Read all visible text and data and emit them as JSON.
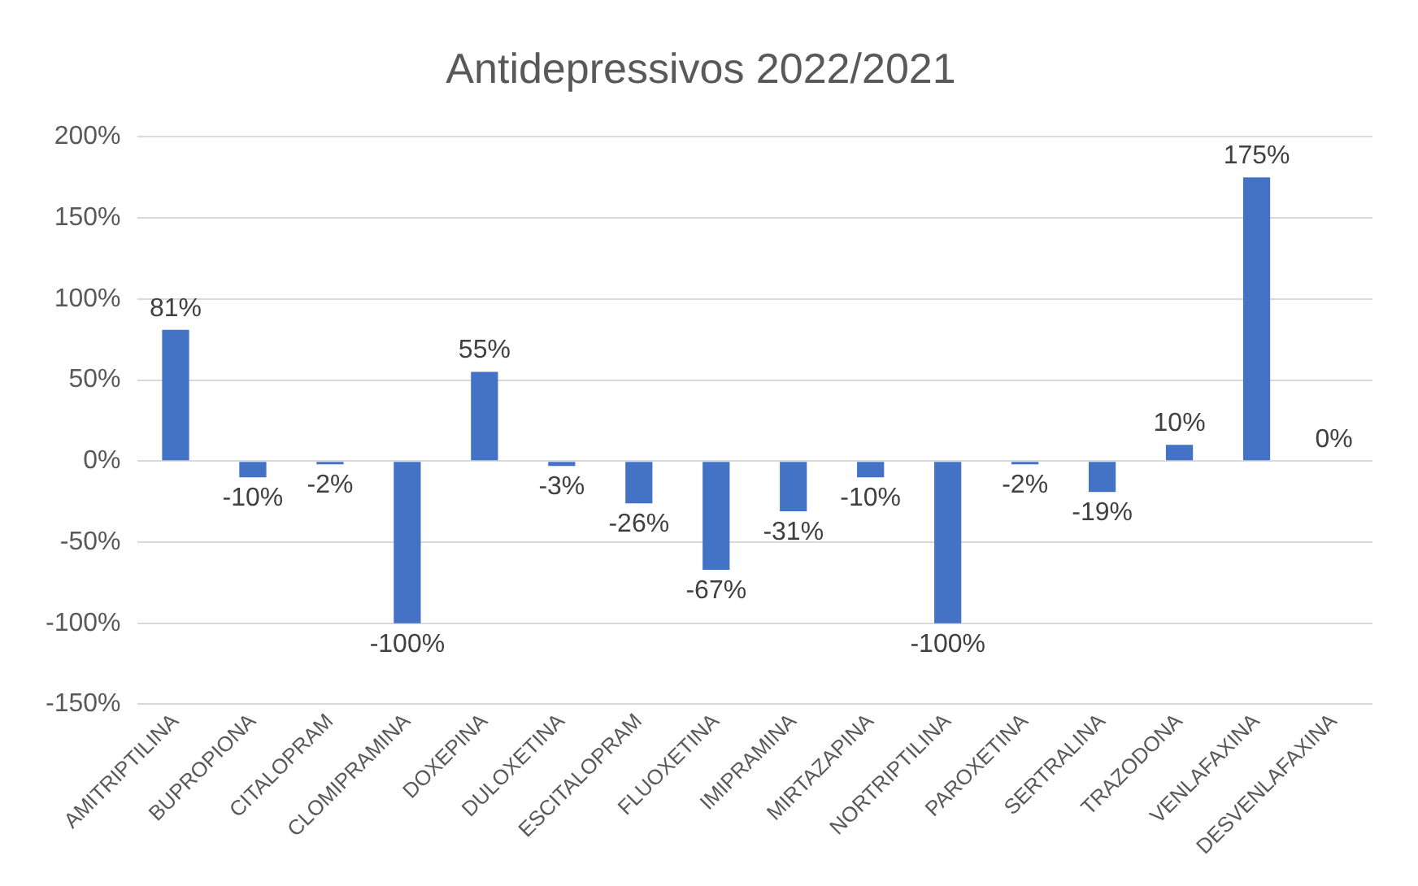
{
  "chart_data": {
    "type": "bar",
    "title": "Antidepressivos 2022/2021",
    "categories": [
      "AMITRIPTILINA",
      "BUPROPIONA",
      "CITALOPRAM",
      "CLOMIPRAMINA",
      "DOXEPINA",
      "DULOXETINA",
      "ESCITALOPRAM",
      "FLUOXETINA",
      "IMIPRAMINA",
      "MIRTAZAPINA",
      "NORTRIPTILINA",
      "PAROXETINA",
      "SERTRALINA",
      "TRAZODONA",
      "VENLAFAXINA",
      "DESVENLAFAXINA"
    ],
    "values": [
      81,
      -10,
      -2,
      -100,
      55,
      -3,
      -26,
      -67,
      -31,
      -10,
      -100,
      -2,
      -19,
      10,
      175,
      0
    ],
    "value_labels": [
      "81%",
      "-10%",
      "-2%",
      "-100%",
      "55%",
      "-3%",
      "-26%",
      "-67%",
      "-31%",
      "-10%",
      "-100%",
      "-2%",
      "-19%",
      "10%",
      "175%",
      "0%"
    ],
    "color": "#4472c4",
    "ylim": [
      -150,
      200
    ],
    "yticks": [
      {
        "value": -150,
        "label": "-150%"
      },
      {
        "value": -100,
        "label": "-100%"
      },
      {
        "value": -50,
        "label": "-50%"
      },
      {
        "value": 0,
        "label": "0%"
      },
      {
        "value": 50,
        "label": "50%"
      },
      {
        "value": 100,
        "label": "100%"
      },
      {
        "value": 150,
        "label": "150%"
      },
      {
        "value": 200,
        "label": "200%"
      }
    ],
    "grid": "y",
    "legend": false
  }
}
